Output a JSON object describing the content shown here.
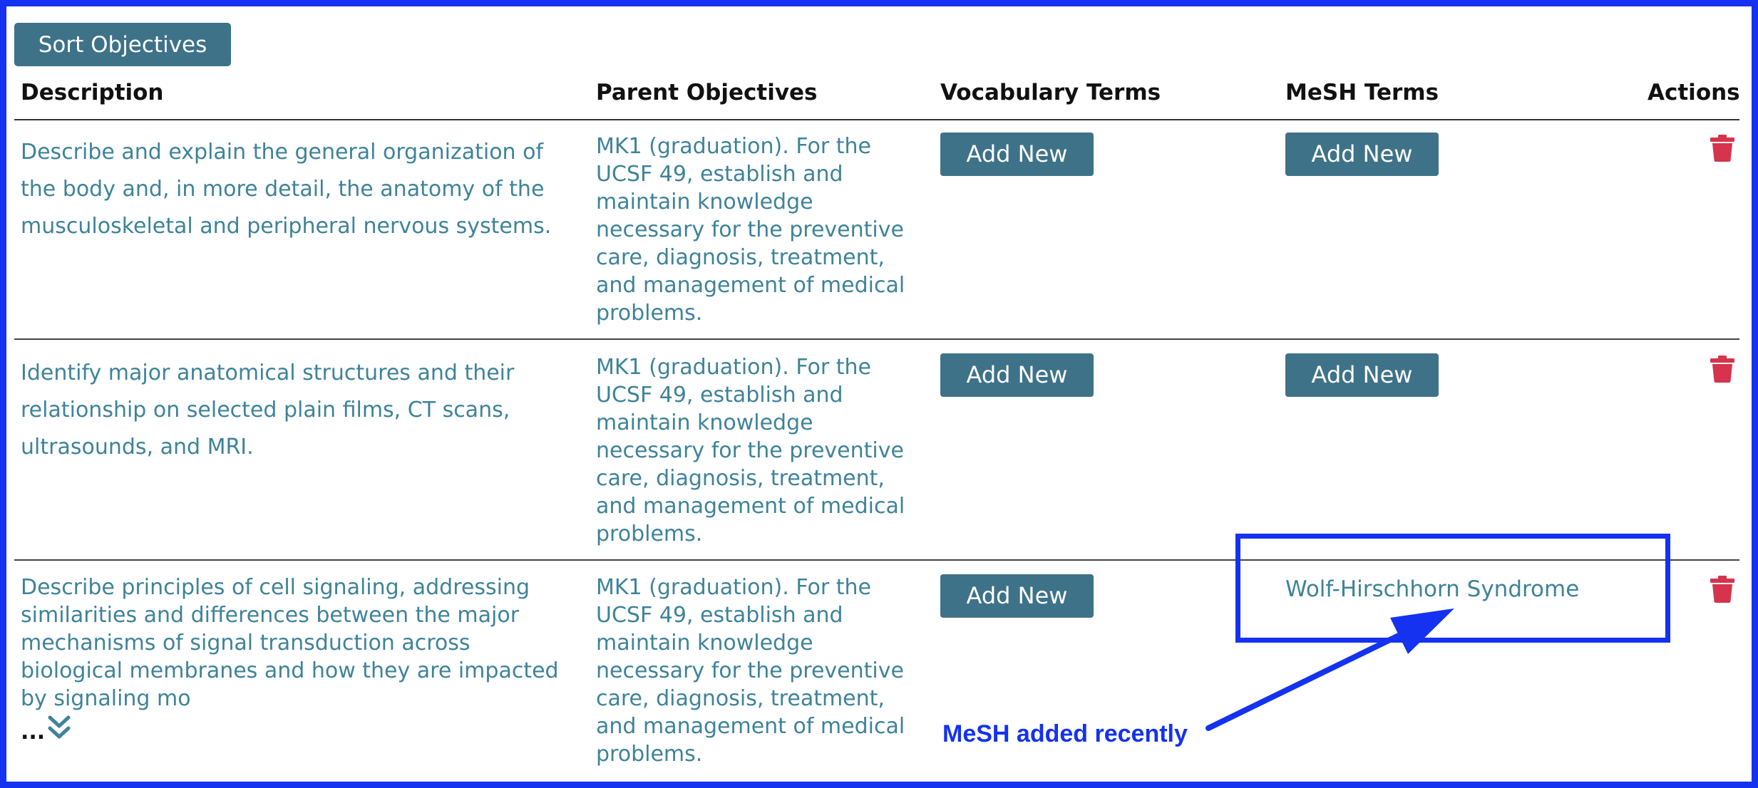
{
  "toolbar": {
    "sort_label": "Sort Objectives"
  },
  "table": {
    "headers": {
      "description": "Description",
      "parent": "Parent Objectives",
      "vocabulary": "Vocabulary Terms",
      "mesh": "MeSH Terms",
      "actions": "Actions"
    },
    "rows": [
      {
        "description": "Describe and explain the general organization of the body and, in more detail, the anatomy of the musculoskeletal and peripheral nervous systems.",
        "parent": "MK1 (graduation). For the UCSF 49, establish and maintain knowledge necessary for the preventive care, diagnosis, treatment, and management of medical problems.",
        "vocabulary_button": "Add New",
        "mesh_button": "Add New"
      },
      {
        "description": "Identify major anatomical structures and their relationship on selected plain films, CT scans, ultrasounds, and MRI.",
        "parent": "MK1 (graduation). For the UCSF 49, establish and maintain knowledge necessary for the preventive care, diagnosis, treatment, and management of medical problems.",
        "vocabulary_button": "Add New",
        "mesh_button": "Add New"
      },
      {
        "description": "Describe principles of cell signaling, addressing similarities and differences between the major mechanisms of signal transduction across biological membranes and how they are impacted by signaling mo",
        "more": "...",
        "parent": "MK1 (graduation). For the UCSF 49, establish and maintain knowledge necessary for the preventive care, diagnosis, treatment, and management of medical problems.",
        "vocabulary_button": "Add New",
        "mesh_term": "Wolf-Hirschhorn Syndrome"
      }
    ]
  },
  "annotation": {
    "text": "MeSH added recently"
  },
  "icons": {
    "delete": "trash-icon",
    "expand": "chevron-double-down-icon"
  },
  "colors": {
    "button": "#3e7289",
    "link": "#3e8399",
    "delete": "#d6334c",
    "annotation": "#1432f0"
  }
}
